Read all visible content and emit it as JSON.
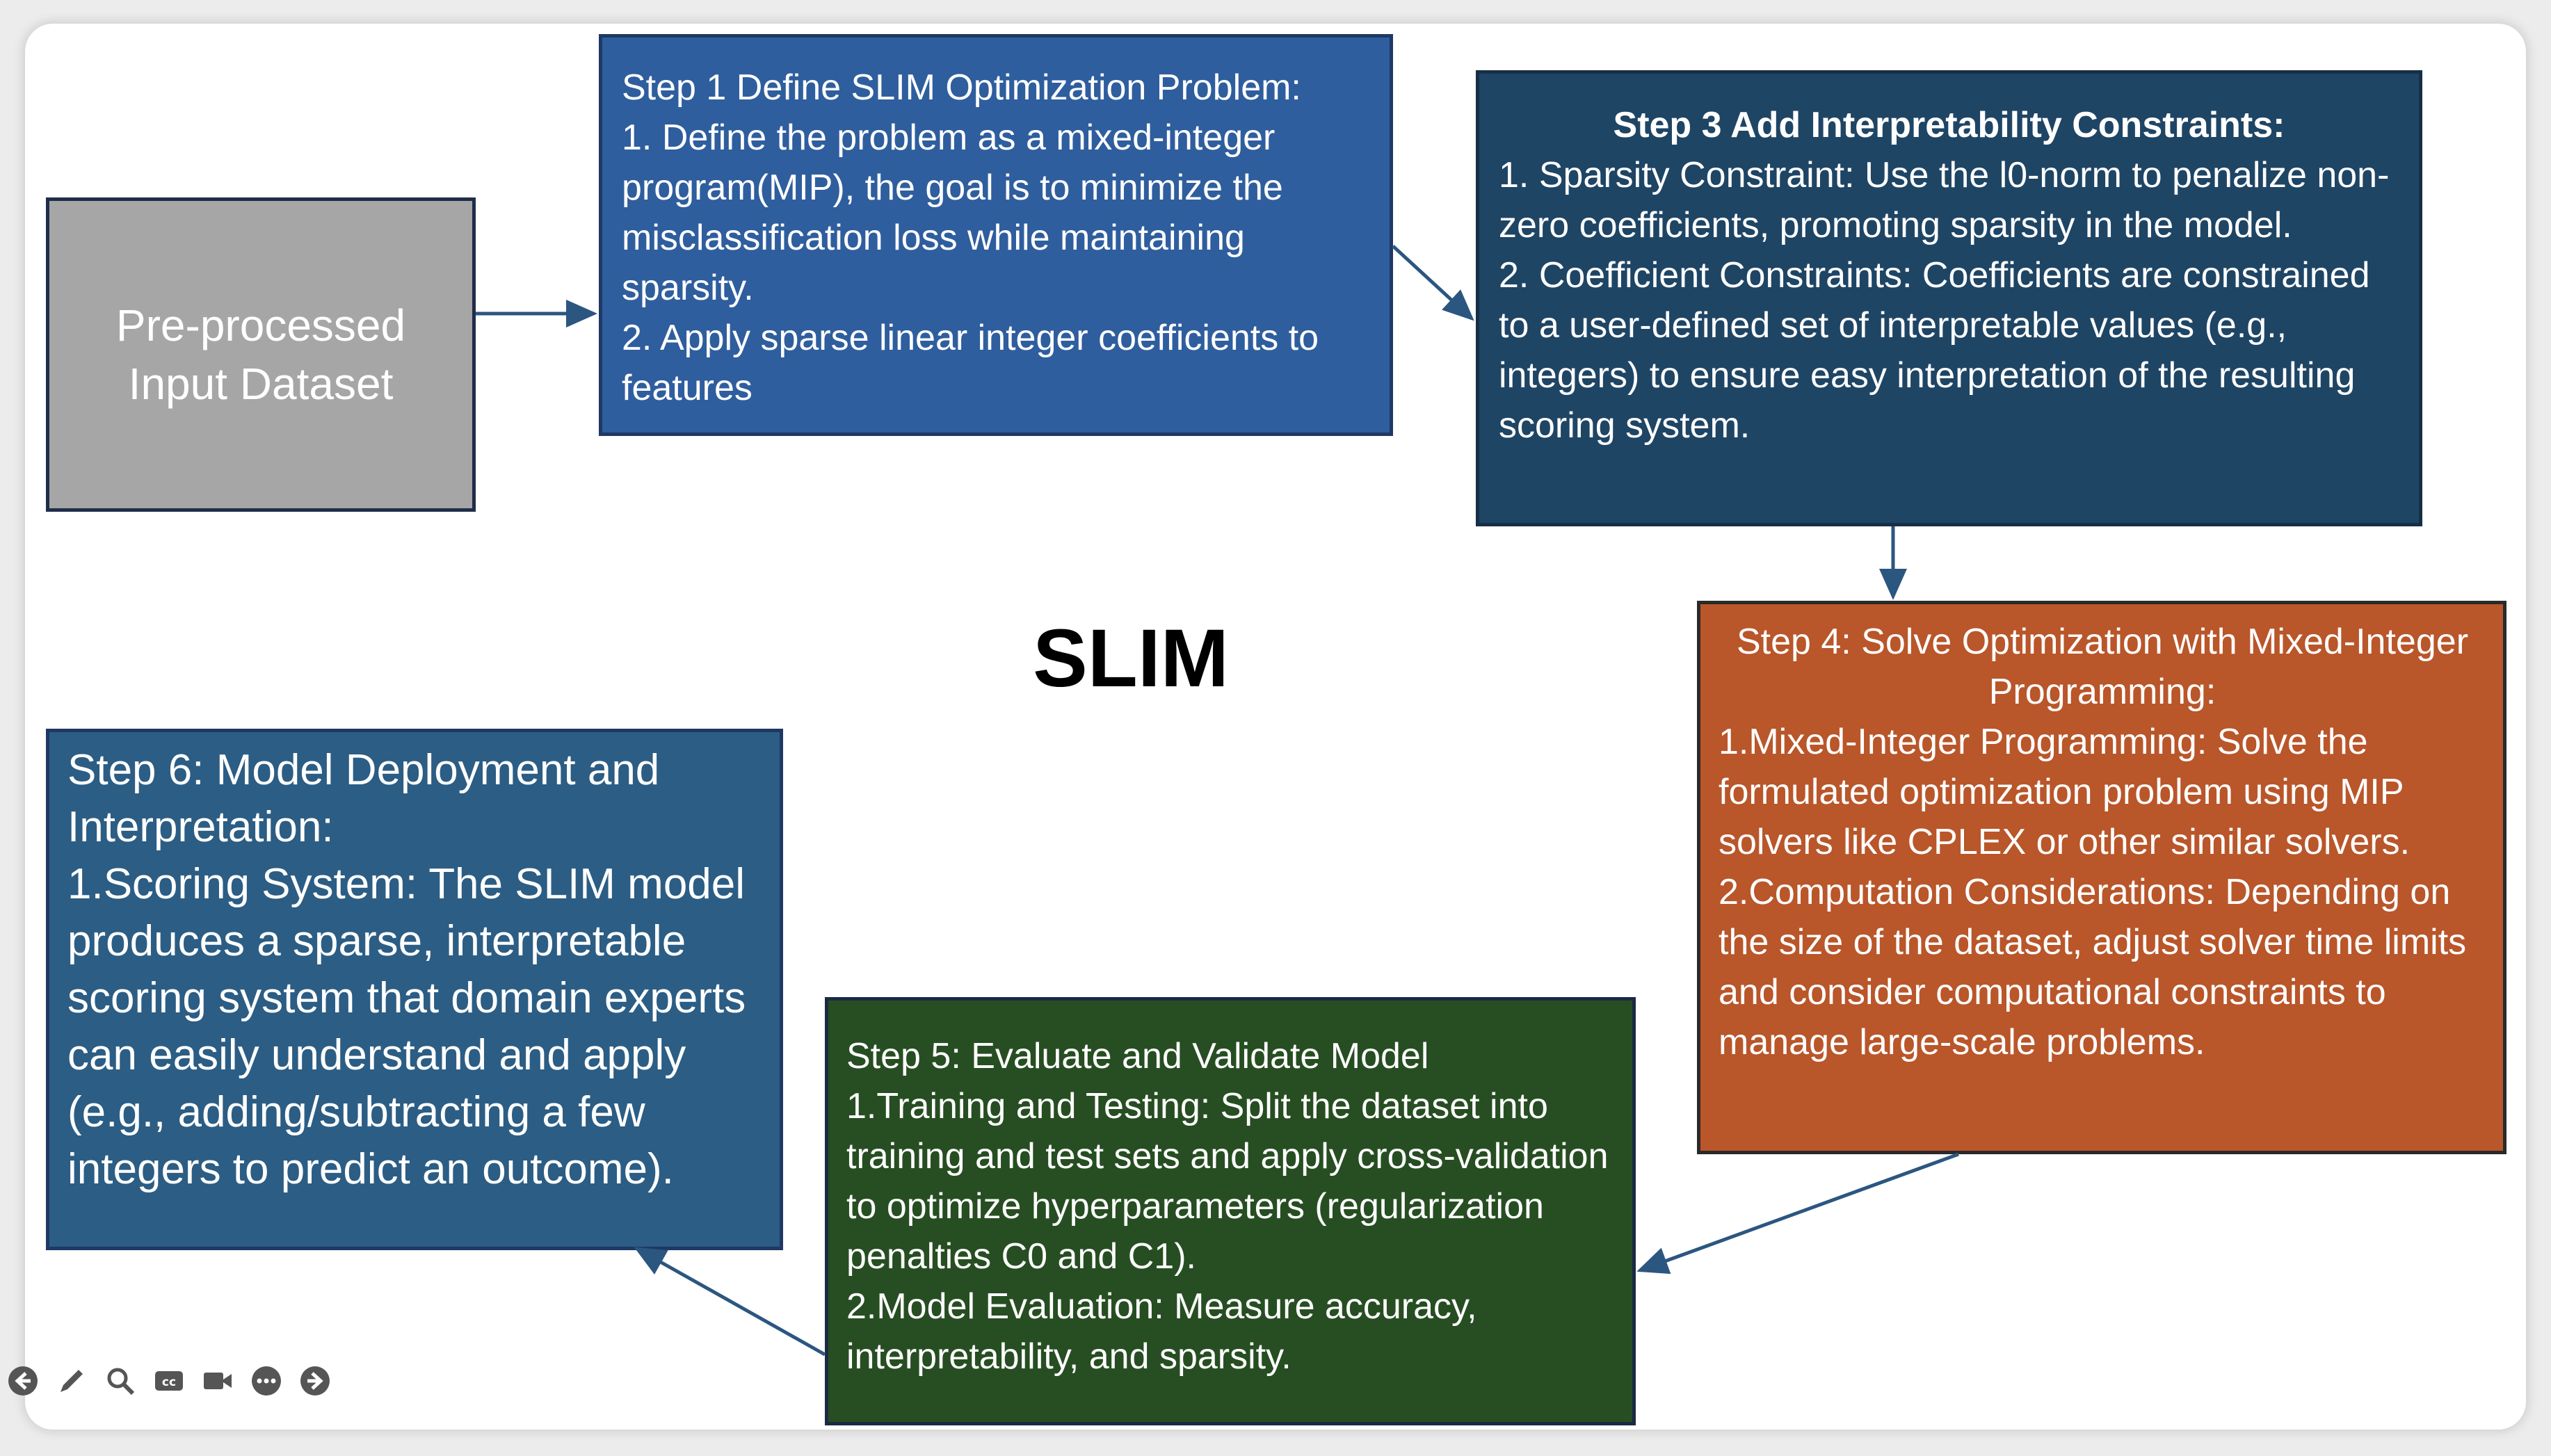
{
  "diagram": {
    "title": "SLIM",
    "input_box": {
      "line1": "Pre-processed",
      "line2": "Input Dataset"
    },
    "step1": {
      "title": "Step 1 Define SLIM Optimization Problem:",
      "item1": "1. Define the problem as a mixed-integer program(MIP), the goal is to minimize the misclassification loss while maintaining sparsity.",
      "item2": "2. Apply sparse linear  integer coefficients to features"
    },
    "step3": {
      "title": "Step 3 Add Interpretability Constraints:",
      "item1": "1. Sparsity Constraint: Use the l0-norm to penalize non-zero coefficients, promoting sparsity in the model.",
      "item2": "2. Coefficient Constraints: Coefficients are constrained to a user-defined set of interpretable values (e.g., integers) to ensure easy interpretation of the resulting scoring system."
    },
    "step4": {
      "title": "Step 4: Solve Optimization with Mixed-Integer Programming:",
      "item1": "1.Mixed-Integer Programming: Solve the formulated optimization problem using MIP solvers like CPLEX or other similar solvers.",
      "item2": "2.Computation Considerations: Depending on the size of the dataset, adjust solver time limits and consider computational constraints to manage large-scale problems."
    },
    "step5": {
      "title": "Step 5: Evaluate and Validate Model",
      "item1": "1.Training and Testing: Split the dataset into training and test sets and apply cross-validation to optimize hyperparameters (regularization penalties C0 and C1).",
      "item2": "2.Model Evaluation: Measure accuracy, interpretability, and sparsity."
    },
    "step6": {
      "title": "Step 6: Model Deployment and Interpretation:",
      "item1": "1.Scoring System: The SLIM model produces a sparse, interpretable scoring system that domain experts can easily understand and apply (e.g., adding/subtracting a few integers to predict an outcome)."
    }
  },
  "toolbar": {
    "icons": [
      "back-arrow-icon",
      "pen-icon",
      "zoom-icon",
      "captions-icon",
      "video-icon",
      "more-icon",
      "forward-arrow-icon"
    ]
  },
  "colors": {
    "input_box": "#a6a6a6",
    "step1": "#2f5e9e",
    "step3": "#1f4565",
    "step4": "#b9562a",
    "step5": "#274e22",
    "step6": "#2c5d84",
    "arrow": "#2b5680"
  }
}
